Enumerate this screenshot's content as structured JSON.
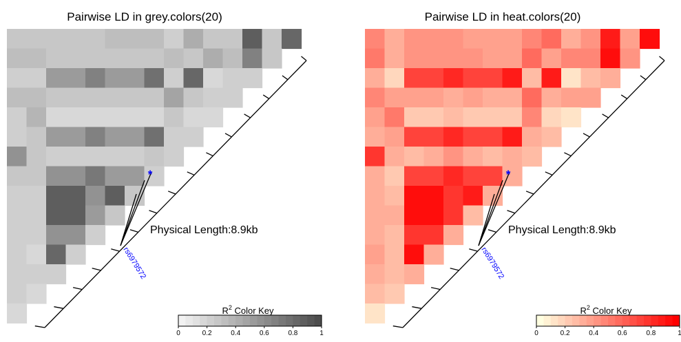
{
  "chart_data": [
    {
      "type": "heatmap",
      "title": "Pairwise LD in grey.colors(20)",
      "palette": "grey.colors(20)",
      "color_range": [
        "#f2f2f2",
        "#4d4d4d"
      ],
      "n_snps": 15,
      "ld_r2_rows": [
        [
          0.25,
          0.25,
          0.25,
          0.25,
          0.25,
          0.3,
          0.3,
          0.3,
          0.2,
          0.4,
          0.25,
          0.25,
          0.9,
          0.25,
          0.85
        ],
        [
          0.3,
          0.3,
          0.25,
          0.25,
          0.25,
          0.25,
          0.25,
          0.25,
          0.3,
          0.25,
          0.4,
          0.3,
          0.7,
          0.25
        ],
        [
          0.2,
          0.2,
          0.55,
          0.55,
          0.7,
          0.5,
          0.55,
          0.8,
          0.2,
          0.85,
          0.15,
          0.2,
          0.2
        ],
        [
          0.3,
          0.3,
          0.25,
          0.25,
          0.25,
          0.25,
          0.25,
          0.25,
          0.45,
          0.25,
          0.2,
          0.2
        ],
        [
          0.2,
          0.35,
          0.15,
          0.15,
          0.15,
          0.15,
          0.15,
          0.15,
          0.25,
          0.15,
          0.15
        ],
        [
          0.2,
          0.25,
          0.5,
          0.5,
          0.7,
          0.5,
          0.55,
          0.8,
          0.2,
          0.2
        ],
        [
          0.6,
          0.25,
          0.2,
          0.2,
          0.2,
          0.2,
          0.2,
          0.25,
          0.2
        ],
        [
          0.25,
          0.25,
          0.6,
          0.6,
          0.75,
          0.55,
          0.55,
          0.2
        ],
        [
          0.2,
          0.2,
          0.9,
          0.9,
          0.6,
          0.9,
          0.25
        ],
        [
          0.2,
          0.2,
          0.9,
          0.9,
          0.55,
          0.25
        ],
        [
          0.2,
          0.2,
          0.6,
          0.6,
          0.2
        ],
        [
          0.2,
          0.15,
          0.85,
          0.2
        ],
        [
          0.2,
          0.2,
          0.2
        ],
        [
          0.2,
          0.15
        ],
        [
          0.15
        ]
      ],
      "physical_length_label": "Physical Length:8.9kb",
      "snp_label": "rs6979572",
      "marker": "*",
      "color_key": {
        "title": "R",
        "superscript": "2",
        "title_suffix": " Color Key",
        "ticks": [
          "0",
          "0.2",
          "0.4",
          "0.6",
          "0.8",
          "1"
        ],
        "range": [
          0,
          1
        ]
      }
    },
    {
      "type": "heatmap",
      "title": "Pairwise LD in heat.colors(20)",
      "palette": "heat.colors(20)",
      "color_range": [
        "#ffffe0",
        "#ff0000"
      ],
      "n_snps": 15,
      "ld_r2_rows": [
        [
          0.45,
          0.3,
          0.4,
          0.4,
          0.4,
          0.35,
          0.35,
          0.35,
          0.45,
          0.6,
          0.3,
          0.4,
          0.9,
          0.35,
          0.95
        ],
        [
          0.55,
          0.3,
          0.4,
          0.4,
          0.4,
          0.4,
          0.35,
          0.35,
          0.6,
          0.35,
          0.45,
          0.45,
          0.95,
          0.4
        ],
        [
          0.3,
          0.15,
          0.75,
          0.75,
          0.85,
          0.75,
          0.75,
          0.9,
          0.25,
          0.9,
          0.1,
          0.25,
          0.3
        ],
        [
          0.45,
          0.35,
          0.35,
          0.35,
          0.3,
          0.35,
          0.3,
          0.3,
          0.6,
          0.3,
          0.35,
          0.35
        ],
        [
          0.35,
          0.55,
          0.2,
          0.2,
          0.25,
          0.2,
          0.2,
          0.2,
          0.45,
          0.15,
          0.1
        ],
        [
          0.3,
          0.35,
          0.75,
          0.75,
          0.85,
          0.75,
          0.75,
          0.9,
          0.3,
          0.25
        ],
        [
          0.8,
          0.3,
          0.25,
          0.3,
          0.4,
          0.3,
          0.25,
          0.3,
          0.25
        ],
        [
          0.3,
          0.2,
          0.75,
          0.75,
          0.85,
          0.75,
          0.75,
          0.3
        ],
        [
          0.3,
          0.25,
          0.95,
          0.95,
          0.8,
          0.9,
          0.3
        ],
        [
          0.3,
          0.3,
          0.95,
          0.95,
          0.8,
          0.25
        ],
        [
          0.3,
          0.25,
          0.8,
          0.8,
          0.3
        ],
        [
          0.35,
          0.25,
          0.95,
          0.3
        ],
        [
          0.3,
          0.25,
          0.3
        ],
        [
          0.25,
          0.2
        ],
        [
          0.1
        ]
      ],
      "physical_length_label": "Physical Length:8.9kb",
      "snp_label": "rs6979572",
      "marker": "*",
      "color_key": {
        "title": "R",
        "superscript": "2",
        "title_suffix": " Color Key",
        "ticks": [
          "0",
          "0.2",
          "0.4",
          "0.6",
          "0.8",
          "1"
        ],
        "range": [
          0,
          1
        ]
      }
    }
  ]
}
